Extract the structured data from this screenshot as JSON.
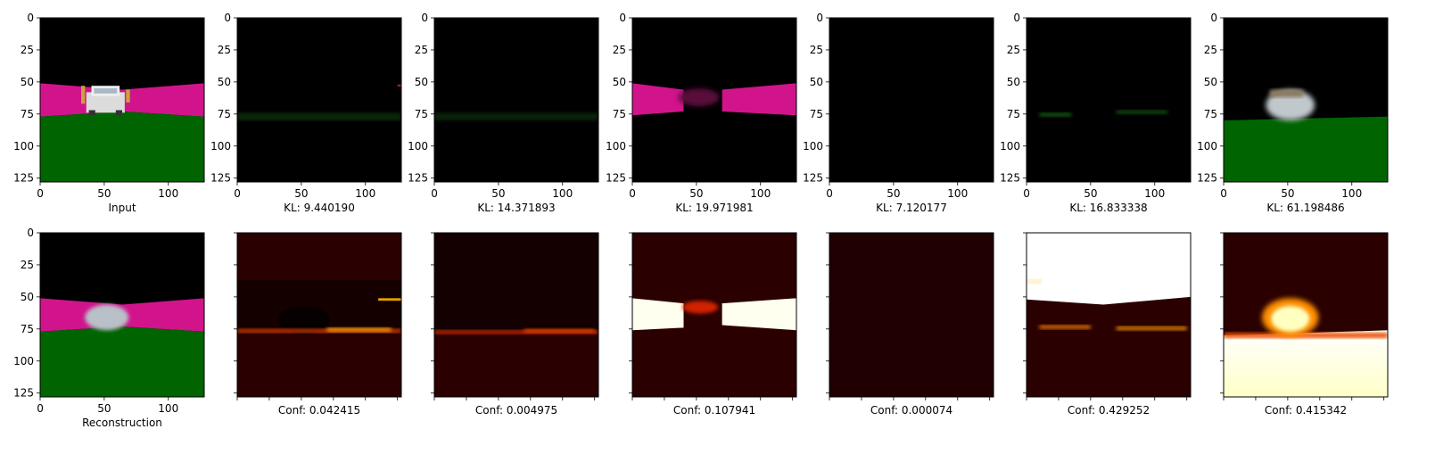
{
  "figure": {
    "panel_size": 128,
    "axis_ticks": [
      "0",
      "25",
      "50",
      "100"
    ],
    "x_ticks": [
      "0",
      "50",
      "100"
    ],
    "y_ticks": [
      "0",
      "25",
      "50",
      "75",
      "100",
      "125"
    ],
    "top_row": [
      {
        "caption": "Input",
        "kind": "scene_input"
      },
      {
        "caption": "KL: 9.440190",
        "kind": "decoded_dim1"
      },
      {
        "caption": "KL: 14.371893",
        "kind": "decoded_dim2"
      },
      {
        "caption": "KL: 19.971981",
        "kind": "decoded_road"
      },
      {
        "caption": "KL: 7.120177",
        "kind": "decoded_black"
      },
      {
        "caption": "KL: 16.833338",
        "kind": "decoded_dim3"
      },
      {
        "caption": "KL: 61.198486",
        "kind": "decoded_car"
      }
    ],
    "bottom_row": [
      {
        "caption": "Reconstruction",
        "kind": "scene_recon"
      },
      {
        "caption": "Conf: 0.042415",
        "kind": "heat_horizon"
      },
      {
        "caption": "Conf: 0.004975",
        "kind": "heat_horizon2"
      },
      {
        "caption": "Conf: 0.107941",
        "kind": "heat_road"
      },
      {
        "caption": "Conf: 0.000074",
        "kind": "heat_dark"
      },
      {
        "caption": "Conf: 0.429252",
        "kind": "heat_sky"
      },
      {
        "caption": "Conf: 0.415342",
        "kind": "heat_car"
      }
    ],
    "colors": {
      "sky": "#000000",
      "road": "#d1148c",
      "grass": "#006400",
      "heat_dark": "#2a0000",
      "heat_hot": "#ffffe0"
    }
  }
}
